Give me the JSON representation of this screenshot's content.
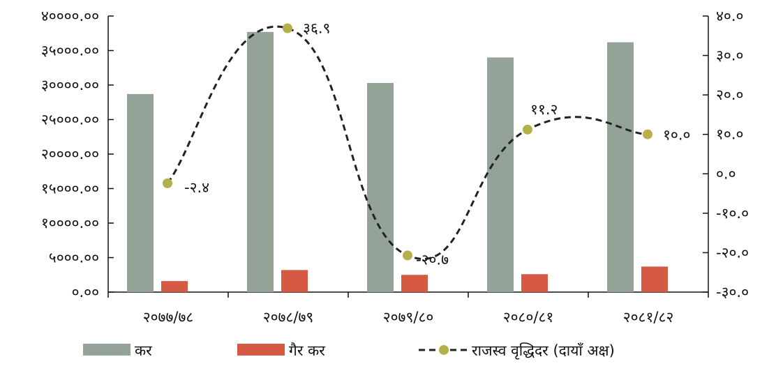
{
  "chart_data": {
    "type": "bar",
    "categories": [
      "२०७७/७८",
      "२०७८/७९",
      "२०७९/८०",
      "२०८०/८१",
      "२०८१/८२"
    ],
    "series": [
      {
        "name": "कर",
        "type": "bar",
        "axis": "left",
        "color": "#93A398",
        "values": [
          28700,
          37700,
          30300,
          34000,
          36200
        ]
      },
      {
        "name": "गैर कर",
        "type": "bar",
        "axis": "left",
        "color": "#D65A43",
        "values": [
          1600,
          3200,
          2500,
          2600,
          3700
        ]
      },
      {
        "name": "राजस्व वृद्धिदर (दायाँ अक्ष)",
        "type": "line",
        "axis": "right",
        "color": "#222222",
        "marker_color": "#B5B04C",
        "values": [
          -2.4,
          36.9,
          -20.7,
          11.2,
          10.0
        ],
        "labels": [
          "-२.४",
          "३६.९",
          "-२०.७",
          "११.२",
          "१०.०"
        ]
      }
    ],
    "left_axis": {
      "ylim": [
        0,
        40000
      ],
      "tick_values": [
        0,
        5000,
        10000,
        15000,
        20000,
        25000,
        30000,
        35000,
        40000
      ],
      "tick_labels": [
        "०.००",
        "५०००.००",
        "१००००.००",
        "१५०००.००",
        "२००००.००",
        "२५०००.००",
        "३००००.००",
        "३५०००.००",
        "४००००.००"
      ]
    },
    "right_axis": {
      "ylim": [
        -30,
        40
      ],
      "tick_values": [
        -30,
        -20,
        -10,
        0,
        10,
        20,
        30,
        40
      ],
      "tick_labels": [
        "-३०.०",
        "-२०.०",
        "-१०.०",
        "०.०",
        "१०.०",
        "२०.०",
        "३०.०",
        "४०.०"
      ]
    },
    "grid": false,
    "legend_position": "bottom",
    "title": "",
    "xlabel": "",
    "ylabel": ""
  }
}
